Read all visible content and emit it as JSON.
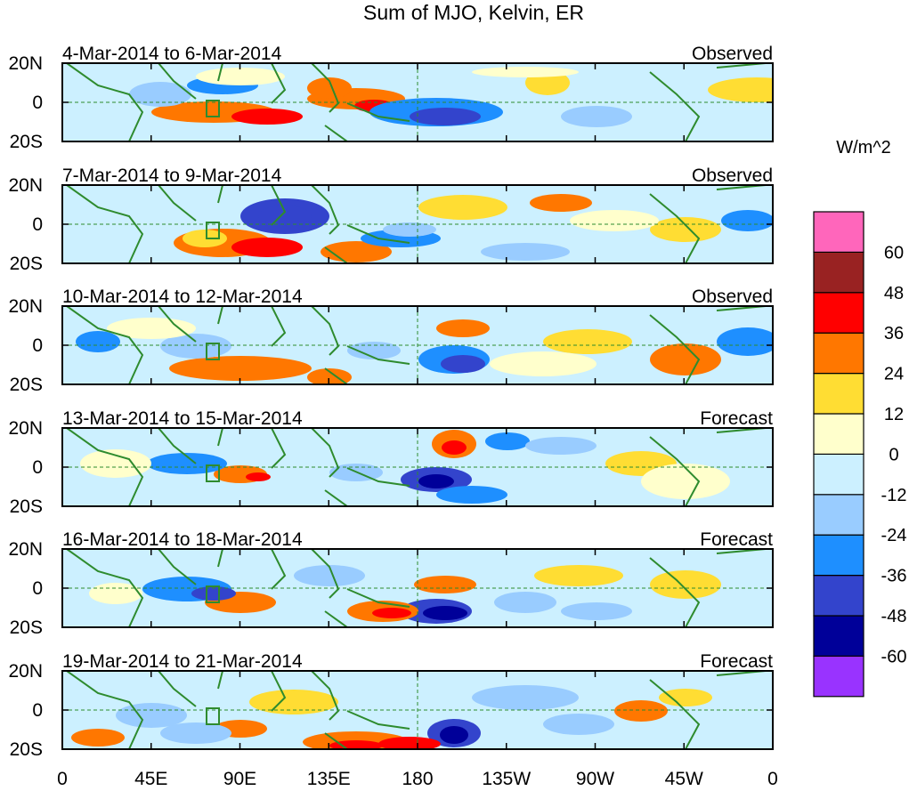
{
  "title": "Sum of MJO, Kelvin, ER",
  "colorbar": {
    "units": "W/m^2",
    "colors": [
      "#9933ff",
      "#000099",
      "#3344cc",
      "#1e8fff",
      "#99ccff",
      "#ccf0ff",
      "#ffffcc",
      "#ffdd33",
      "#ff7700",
      "#ff0000",
      "#992222",
      "#ff66bb"
    ],
    "tick_labels": [
      "-60",
      "-48",
      "-36",
      "-24",
      "-12",
      "0",
      "12",
      "24",
      "36",
      "48",
      "60"
    ]
  },
  "axes": {
    "x_tick_labels": [
      "0",
      "45E",
      "90E",
      "135E",
      "180",
      "135W",
      "90W",
      "45W",
      "0"
    ],
    "y_tick_labels": [
      "20N",
      "0",
      "20S"
    ]
  },
  "panels": [
    {
      "date_range": "4-Mar-2014 to 6-Mar-2014",
      "status": "Observed"
    },
    {
      "date_range": "7-Mar-2014 to 9-Mar-2014",
      "status": "Observed"
    },
    {
      "date_range": "10-Mar-2014 to 12-Mar-2014",
      "status": "Observed"
    },
    {
      "date_range": "13-Mar-2014 to 15-Mar-2014",
      "status": "Forecast"
    },
    {
      "date_range": "16-Mar-2014 to 18-Mar-2014",
      "status": "Forecast"
    },
    {
      "date_range": "19-Mar-2014 to 21-Mar-2014",
      "status": "Forecast"
    }
  ]
}
